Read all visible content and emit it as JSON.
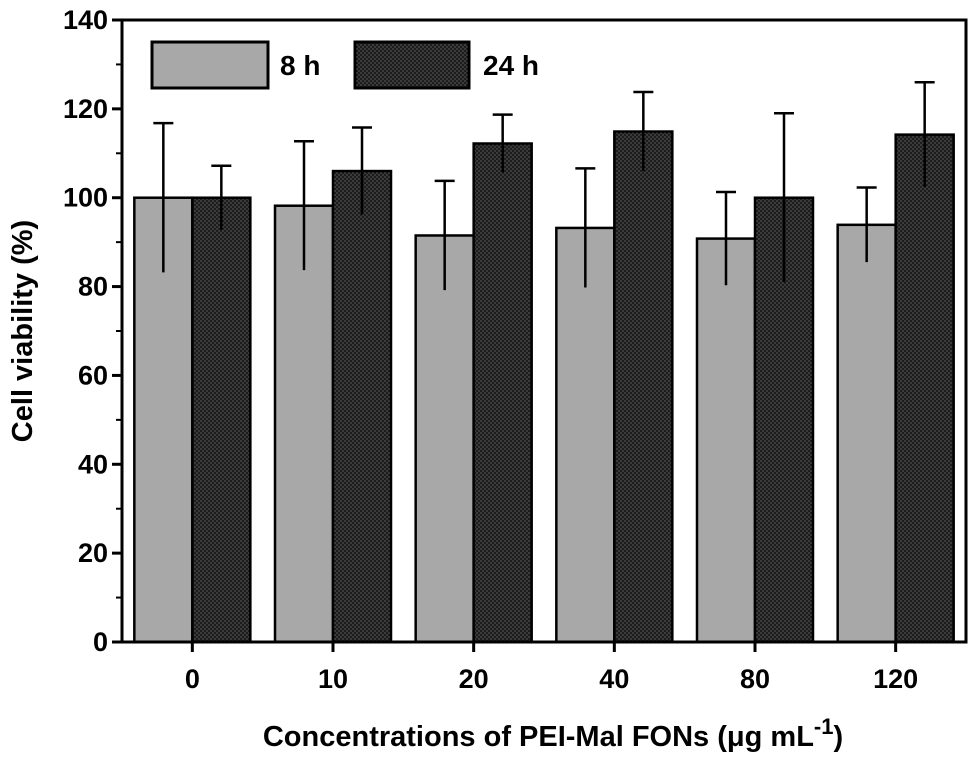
{
  "chart_data": {
    "type": "bar",
    "categories": [
      "0",
      "10",
      "20",
      "40",
      "80",
      "120"
    ],
    "series": [
      {
        "name": "8 h",
        "values": [
          100.0,
          98.2,
          91.5,
          93.2,
          90.8,
          93.9
        ],
        "errors": [
          16.8,
          14.5,
          12.3,
          13.4,
          10.5,
          8.4
        ],
        "color": "#a8a8a8",
        "pattern": "solid"
      },
      {
        "name": "24 h",
        "values": [
          100.0,
          106.0,
          112.2,
          114.9,
          100.0,
          114.2
        ],
        "errors": [
          7.2,
          9.8,
          6.5,
          8.9,
          19.0,
          11.8
        ],
        "color": "#1c1c1c",
        "pattern": "dotted-dark"
      }
    ],
    "xlabel": "Concentrations of PEI-Mal FONs (μg mL",
    "xlabel_superscript": "-1",
    "xlabel_suffix": ")",
    "ylabel": "Cell viability (%)",
    "ylim": [
      0,
      140
    ],
    "yticks": [
      "0",
      "20",
      "40",
      "60",
      "80",
      "100",
      "120",
      "140"
    ],
    "grid": false,
    "legend_position": "top-left",
    "error_bars": "upper",
    "axis_color": "#000000"
  }
}
